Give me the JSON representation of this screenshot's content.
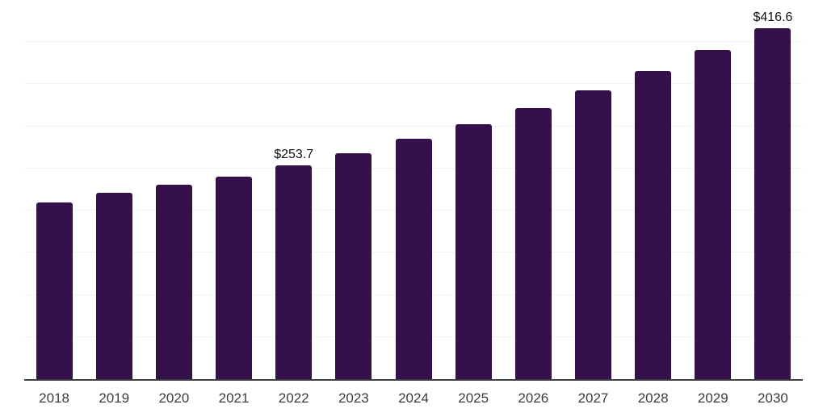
{
  "chart_data": {
    "type": "bar",
    "title": "",
    "xlabel": "",
    "ylabel": "",
    "categories": [
      "2018",
      "2019",
      "2020",
      "2021",
      "2022",
      "2023",
      "2024",
      "2025",
      "2026",
      "2027",
      "2028",
      "2029",
      "2030"
    ],
    "values": [
      210,
      221.5,
      230.5,
      240,
      253.7,
      268,
      285,
      302.5,
      321.5,
      342.5,
      365.5,
      390.5,
      416.6
    ],
    "data_labels": [
      "",
      "",
      "",
      "",
      "$253.7",
      "",
      "",
      "",
      "",
      "",
      "",
      "",
      "$416.6"
    ],
    "value_prefix": "$",
    "ylim": [
      0,
      450
    ],
    "gridline_step": 50,
    "grid": true,
    "legend": "none",
    "y_axis_labels_visible": false,
    "colors": {
      "bar": "#34114b",
      "axis_line": "#3f3f3f",
      "gridline": "#f3f3f3",
      "tick_label": "#3c3c3c",
      "data_label": "#111111",
      "background": "#ffffff"
    }
  }
}
